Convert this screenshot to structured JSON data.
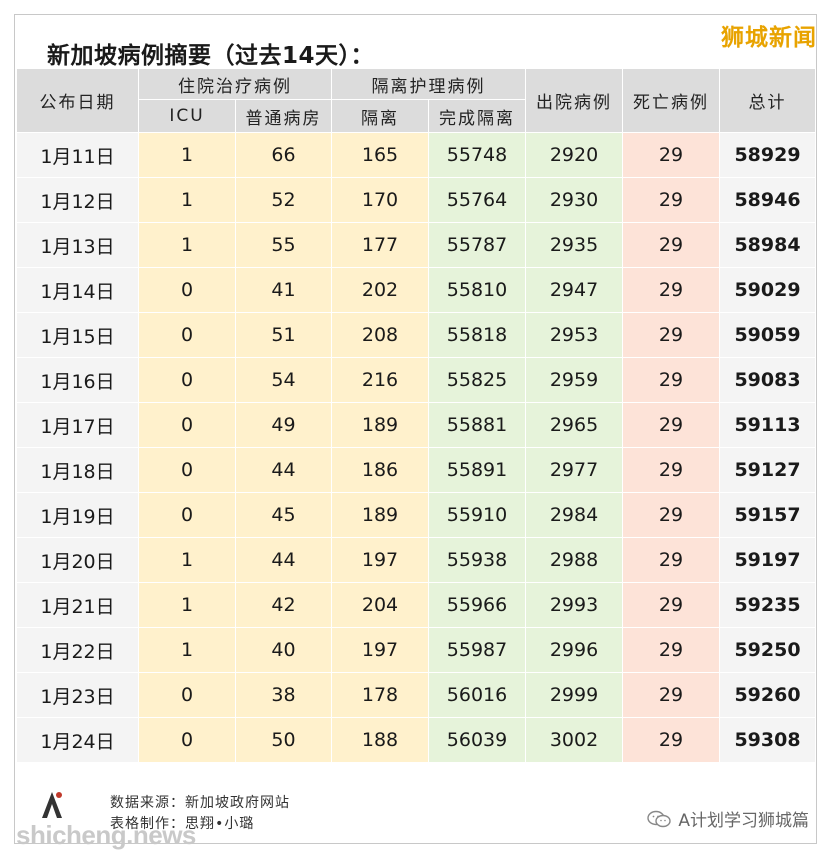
{
  "header": {
    "title": "新加坡病例摘要（过去14天）：",
    "brand": "狮城新闻"
  },
  "table": {
    "group_headers": {
      "date": "公布日期",
      "hospital": "住院治疗病例",
      "isolation": "隔离护理病例",
      "discharged": "出院病例",
      "deaths": "死亡病例",
      "total": "总计"
    },
    "sub_headers": {
      "icu": "ICU",
      "ward": "普通病房",
      "isolating": "隔离",
      "completed": "完成隔离"
    },
    "rows": [
      {
        "date": "1月11日",
        "icu": "1",
        "ward": "66",
        "iso": "165",
        "done": "55748",
        "dis": "2920",
        "dead": "29",
        "total": "58929"
      },
      {
        "date": "1月12日",
        "icu": "1",
        "ward": "52",
        "iso": "170",
        "done": "55764",
        "dis": "2930",
        "dead": "29",
        "total": "58946"
      },
      {
        "date": "1月13日",
        "icu": "1",
        "ward": "55",
        "iso": "177",
        "done": "55787",
        "dis": "2935",
        "dead": "29",
        "total": "58984"
      },
      {
        "date": "1月14日",
        "icu": "0",
        "ward": "41",
        "iso": "202",
        "done": "55810",
        "dis": "2947",
        "dead": "29",
        "total": "59029"
      },
      {
        "date": "1月15日",
        "icu": "0",
        "ward": "51",
        "iso": "208",
        "done": "55818",
        "dis": "2953",
        "dead": "29",
        "total": "59059"
      },
      {
        "date": "1月16日",
        "icu": "0",
        "ward": "54",
        "iso": "216",
        "done": "55825",
        "dis": "2959",
        "dead": "29",
        "total": "59083"
      },
      {
        "date": "1月17日",
        "icu": "0",
        "ward": "49",
        "iso": "189",
        "done": "55881",
        "dis": "2965",
        "dead": "29",
        "total": "59113"
      },
      {
        "date": "1月18日",
        "icu": "0",
        "ward": "44",
        "iso": "186",
        "done": "55891",
        "dis": "2977",
        "dead": "29",
        "total": "59127"
      },
      {
        "date": "1月19日",
        "icu": "0",
        "ward": "45",
        "iso": "189",
        "done": "55910",
        "dis": "2984",
        "dead": "29",
        "total": "59157"
      },
      {
        "date": "1月20日",
        "icu": "1",
        "ward": "44",
        "iso": "197",
        "done": "55938",
        "dis": "2988",
        "dead": "29",
        "total": "59197"
      },
      {
        "date": "1月21日",
        "icu": "1",
        "ward": "42",
        "iso": "204",
        "done": "55966",
        "dis": "2993",
        "dead": "29",
        "total": "59235"
      },
      {
        "date": "1月22日",
        "icu": "1",
        "ward": "40",
        "iso": "197",
        "done": "55987",
        "dis": "2996",
        "dead": "29",
        "total": "59250"
      },
      {
        "date": "1月23日",
        "icu": "0",
        "ward": "38",
        "iso": "178",
        "done": "56016",
        "dis": "2999",
        "dead": "29",
        "total": "59260"
      },
      {
        "date": "1月24日",
        "icu": "0",
        "ward": "50",
        "iso": "188",
        "done": "56039",
        "dis": "3002",
        "dead": "29",
        "total": "59308"
      }
    ]
  },
  "footer": {
    "source": "数据来源：新加坡政府网站",
    "author": "表格制作：思翔•小璐",
    "watermark": "shicheng.news",
    "wechat_label": "A计划学习狮城篇"
  },
  "colors": {
    "header_bg": "#dcdcdc",
    "hospital_bg": "#fff1cc",
    "isolation_bg": "#e6f3da",
    "deaths_bg": "#fde3d8",
    "brand": "#e8a300"
  },
  "icons": [
    "logo-icon",
    "wechat-icon"
  ]
}
